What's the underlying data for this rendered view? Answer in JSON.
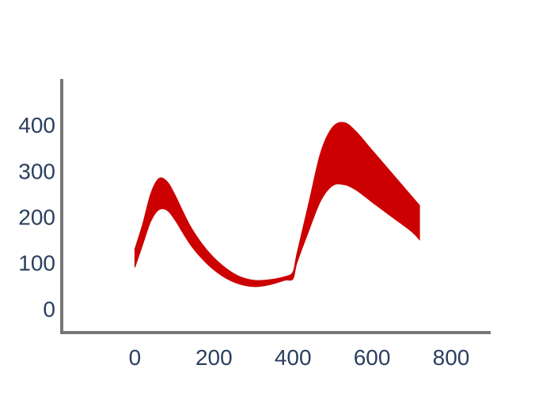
{
  "chart_data": {
    "type": "area",
    "title": "",
    "xlabel": "",
    "ylabel": "",
    "xlim": [
      -185,
      900
    ],
    "ylim": [
      -52,
      500
    ],
    "x_ticks": [
      0,
      200,
      400,
      600,
      800
    ],
    "y_ticks": [
      0,
      100,
      200,
      300,
      400
    ],
    "grid": false,
    "legend": "none",
    "series": [
      {
        "color": "#cc0000",
        "x": [
          0,
          20,
          40,
          60,
          80,
          100,
          140,
          180,
          220,
          260,
          300,
          340,
          380,
          400,
          410,
          440,
          470,
          500,
          530,
          560,
          600,
          650,
          700,
          720
        ],
        "upper": [
          130,
          185,
          250,
          283,
          278,
          250,
          180,
          130,
          95,
          72,
          62,
          63,
          70,
          80,
          120,
          230,
          340,
          395,
          405,
          385,
          345,
          295,
          245,
          225
        ],
        "lower": [
          90,
          140,
          190,
          215,
          215,
          195,
          140,
          100,
          72,
          55,
          48,
          52,
          62,
          65,
          100,
          170,
          235,
          268,
          270,
          258,
          232,
          200,
          168,
          150
        ]
      }
    ]
  }
}
